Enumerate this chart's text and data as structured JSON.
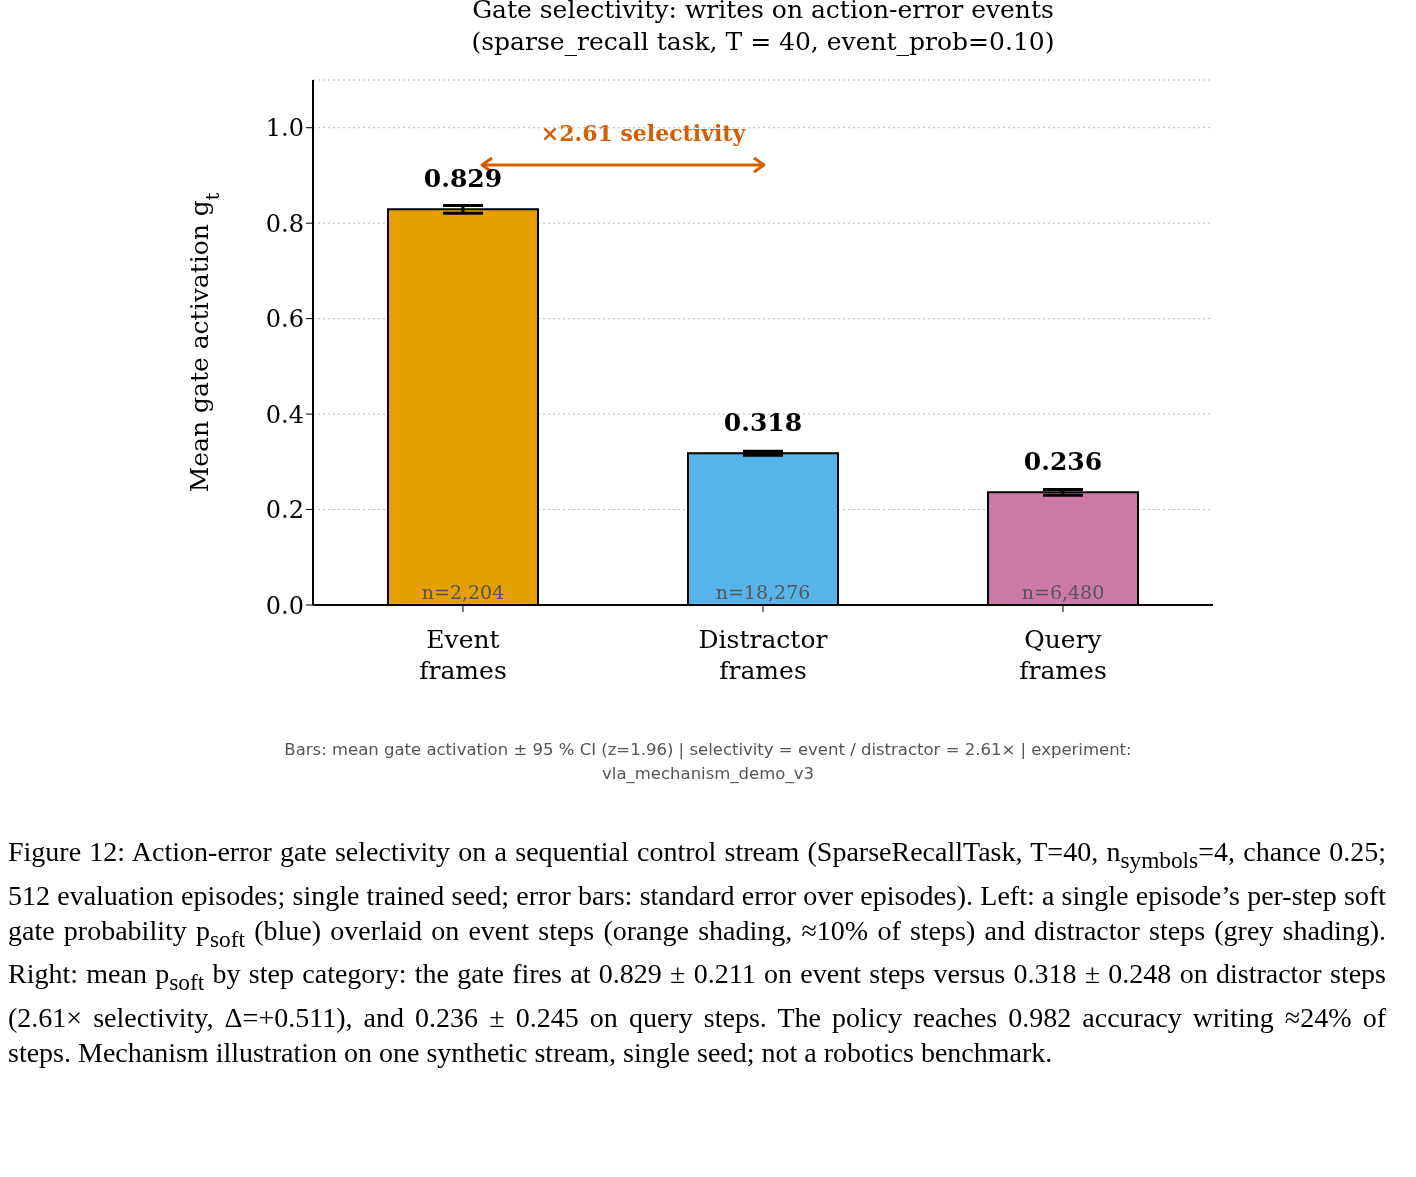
{
  "chart_data": {
    "type": "bar",
    "title": "Gate selectivity: writes on action-error events\n(sparse_recall task, T = 40, event_prob=0.10)",
    "ylabel": "Mean gate activation g$_{t}$",
    "categories": [
      "Event\nframes",
      "Distractor\nframes",
      "Query\nframes"
    ],
    "values": [
      0.829,
      0.318,
      0.236
    ],
    "colors": [
      "#e69f00",
      "#56b4e9",
      "#cc79a7"
    ],
    "errors": [
      0.008,
      0.004,
      0.006
    ],
    "data_labels": true,
    "ylim": [
      0,
      1.1
    ],
    "yticks": [
      {
        "value": 0,
        "label": "0.0"
      },
      0.2,
      0.4,
      0.6,
      0.8,
      {
        "value": 1,
        "label": "1.0"
      }
    ],
    "grid": "y",
    "annotations": [
      "×2.61 selectivity",
      {
        "text": "n=2,204",
        "x": "Event\nframes",
        "y": 0
      },
      {
        "text": "n=18,276",
        "x": "Distractor\nframes",
        "y": 0
      },
      {
        "text": "n=6,480",
        "x": "Query\nframes",
        "y": 0
      },
      "Bars: mean gate activation ± 95 % CI (z=1.96)  |  selectivity = event / distractor = 2.61×  |  experiment: vla_mechanism_demo_v3",
      "Figure 12: Action-error gate selectivity on a sequential control stream (SparseRecallTask, T=40, n$_{symbols}$=4, chance 0.25; 512 evaluation episodes; single trained seed; error bars: standard error over episodes). Left: a single episode’s per-step soft gate probability p$_{soft}$ (blue) overlaid on event steps (orange shading, ≈10% of steps) and distractor steps (grey shading). Right: mean p$_{soft}$ by step category: the gate fires at 0.829 ± 0.211 on event steps versus 0.318 ± 0.248 on distractor steps (2.61× selectivity, Δ=+0.511), and 0.236 ± 0.245 on query steps. The policy reaches 0.982 accuracy writing ≈24% of steps. Mechanism illustration on one synthetic stream, single seed; not a robotics benchmark."
    ]
  }
}
